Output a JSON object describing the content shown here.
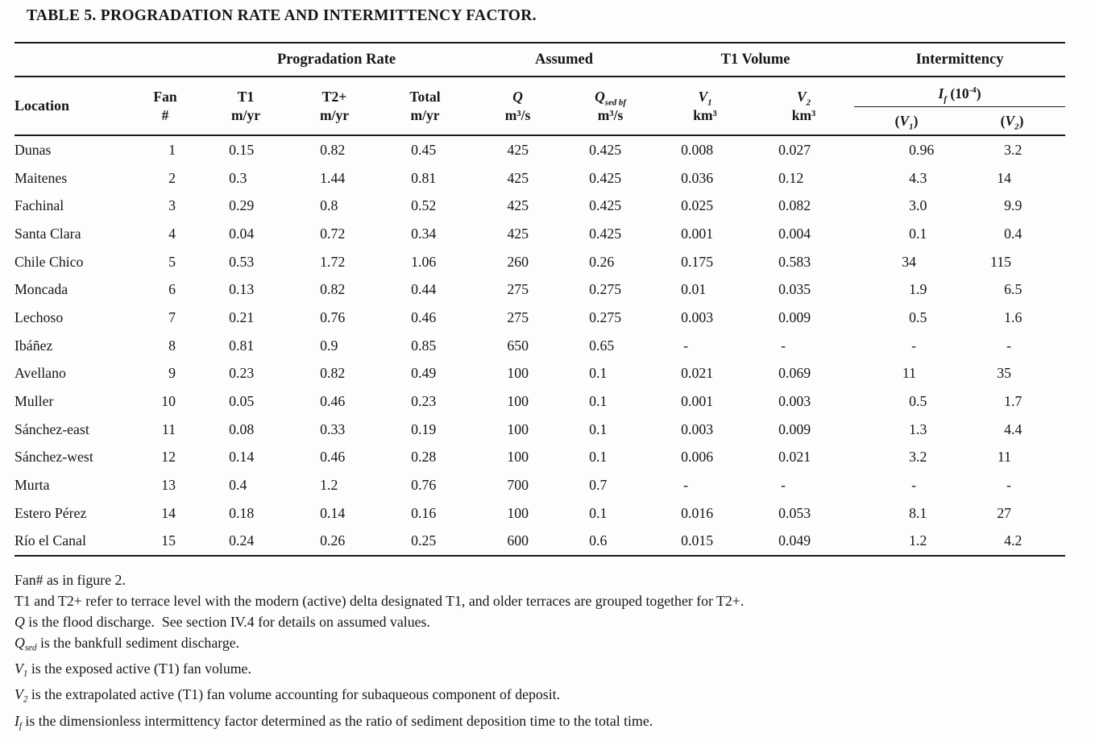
{
  "title": "TABLE 5. PROGRADATION RATE AND INTERMITTENCY FACTOR.",
  "header": {
    "groups": [
      "Progradation Rate",
      "Assumed",
      "T1 Volume",
      "Intermittency"
    ],
    "location": "Location",
    "fan": {
      "l1": "Fan",
      "l2": "#"
    },
    "t1": {
      "l1": "T1",
      "l2": "m/yr"
    },
    "t2": {
      "l1": "T2+",
      "l2": "m/yr"
    },
    "total": {
      "l1": "Total",
      "l2": "m/yr"
    },
    "q": {
      "sym": "Q",
      "unit": "m³/s"
    },
    "qsed": {
      "sym": "Q",
      "sub": "sed bf",
      "unit": "m³/s"
    },
    "v1": {
      "sym": "V",
      "sub": "1",
      "unit": "km³"
    },
    "v2": {
      "sym": "V",
      "sub": "2",
      "unit": "km³"
    },
    "ifac": {
      "sym": "I",
      "sub": "f",
      "rest": " (10",
      "exp": "-4",
      "close": ")"
    },
    "ifv1": {
      "open": "(",
      "sym": "V",
      "sub": "1",
      "close": ")"
    },
    "ifv2": {
      "open": "(",
      "sym": "V",
      "sub": "2",
      "close": ")"
    }
  },
  "table": {
    "rows": [
      [
        "Dunas",
        "1",
        "0.15",
        "0.82",
        "0.45",
        "425",
        "0.425",
        "0.008",
        "0.027",
        "0.96",
        "3.2"
      ],
      [
        "Maitenes",
        "2",
        "0.3",
        "1.44",
        "0.81",
        "425",
        "0.425",
        "0.036",
        "0.12",
        "4.3",
        "14"
      ],
      [
        "Fachinal",
        "3",
        "0.29",
        "0.8",
        "0.52",
        "425",
        "0.425",
        "0.025",
        "0.082",
        "3.0",
        "9.9"
      ],
      [
        "Santa Clara",
        "4",
        "0.04",
        "0.72",
        "0.34",
        "425",
        "0.425",
        "0.001",
        "0.004",
        "0.1",
        "0.4"
      ],
      [
        "Chile Chico",
        "5",
        "0.53",
        "1.72",
        "1.06",
        "260",
        "0.26",
        "0.175",
        "0.583",
        "34",
        "115"
      ],
      [
        "Moncada",
        "6",
        "0.13",
        "0.82",
        "0.44",
        "275",
        "0.275",
        "0.01",
        "0.035",
        "1.9",
        "6.5"
      ],
      [
        "Lechoso",
        "7",
        "0.21",
        "0.76",
        "0.46",
        "275",
        "0.275",
        "0.003",
        "0.009",
        "0.5",
        "1.6"
      ],
      [
        "Ibáñez",
        "8",
        "0.81",
        "0.9",
        "0.85",
        "650",
        "0.65",
        "-",
        "-",
        "-",
        "-"
      ],
      [
        "Avellano",
        "9",
        "0.23",
        "0.82",
        "0.49",
        "100",
        "0.1",
        "0.021",
        "0.069",
        "11",
        "35"
      ],
      [
        "Muller",
        "10",
        "0.05",
        "0.46",
        "0.23",
        "100",
        "0.1",
        "0.001",
        "0.003",
        "0.5",
        "1.7"
      ],
      [
        "Sánchez-east",
        "11",
        "0.08",
        "0.33",
        "0.19",
        "100",
        "0.1",
        "0.003",
        "0.009",
        "1.3",
        "4.4"
      ],
      [
        "Sánchez-west",
        "12",
        "0.14",
        "0.46",
        "0.28",
        "100",
        "0.1",
        "0.006",
        "0.021",
        "3.2",
        "11"
      ],
      [
        "Murta",
        "13",
        "0.4",
        "1.2",
        "0.76",
        "700",
        "0.7",
        "-",
        "-",
        "-",
        "-"
      ],
      [
        "Estero Pérez",
        "14",
        "0.18",
        "0.14",
        "0.16",
        "100",
        "0.1",
        "0.016",
        "0.053",
        "8.1",
        "27"
      ],
      [
        "Río el Canal",
        "15",
        "0.24",
        "0.26",
        "0.25",
        "600",
        "0.6",
        "0.015",
        "0.049",
        "1.2",
        "4.2"
      ]
    ]
  },
  "footnotes": [
    [
      {
        "t": "Fan# as in figure 2."
      }
    ],
    [
      {
        "t": "T1 and T2+ refer to terrace level with the modern (active) delta designated T1, and older terraces are grouped together for T2+."
      }
    ],
    [
      {
        "t": "Q",
        "s": "i"
      },
      {
        "t": " is the flood discharge.  See section IV.4 for details on assumed values."
      }
    ],
    [
      {
        "t": "Q",
        "s": "i"
      },
      {
        "t": "sed",
        "s": "isub"
      },
      {
        "t": " is the bankfull sediment discharge."
      }
    ],
    [
      {
        "t": "V",
        "s": "i"
      },
      {
        "t": "1",
        "s": "isub"
      },
      {
        "t": " is the exposed active (T1) fan volume."
      }
    ],
    [
      {
        "t": "V",
        "s": "i"
      },
      {
        "t": "2",
        "s": "isub"
      },
      {
        "t": " is the extrapolated active (T1) fan volume accounting for subaqueous component of deposit."
      }
    ],
    [
      {
        "t": "I",
        "s": "i"
      },
      {
        "t": "f",
        "s": "isub"
      },
      {
        "t": " is the dimensionless intermittency factor determined as the ratio of sediment deposition time to the total time."
      }
    ]
  ]
}
